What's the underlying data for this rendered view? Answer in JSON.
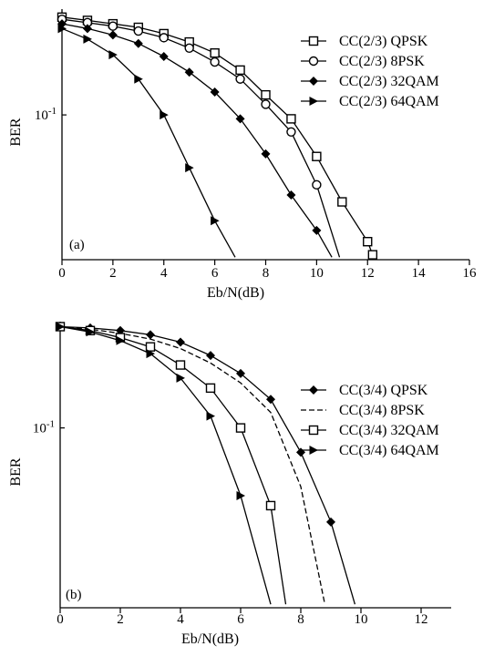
{
  "chart_data": [
    {
      "type": "line",
      "panel_label": "(a)",
      "xlabel": "Eb/N(dB)",
      "ylabel": "BER",
      "xlim": [
        0,
        16
      ],
      "x_ticks": [
        "0",
        "2",
        "4",
        "6",
        "8",
        "10",
        "12",
        "14",
        "16"
      ],
      "y_scale": "log",
      "ylim": [
        0.015,
        0.4
      ],
      "y_ticks": [
        {
          "value": 0.1,
          "base": "10",
          "exp": "-1"
        }
      ],
      "grid": false,
      "legend_position": "top-right",
      "series": [
        {
          "name": "CC(2/3) QPSK",
          "marker": "square",
          "x": [
            0,
            1,
            2,
            3,
            4,
            5,
            6,
            7,
            8,
            9,
            10,
            11,
            12,
            12.2
          ],
          "y": [
            0.36,
            0.345,
            0.33,
            0.315,
            0.29,
            0.26,
            0.225,
            0.18,
            0.13,
            0.095,
            0.058,
            0.032,
            0.019,
            0.016
          ]
        },
        {
          "name": "CC(2/3) 8PSK",
          "marker": "circle",
          "x": [
            0,
            1,
            2,
            3,
            4,
            5,
            6,
            7,
            8,
            9,
            10,
            10.9
          ],
          "y": [
            0.35,
            0.335,
            0.32,
            0.3,
            0.275,
            0.24,
            0.2,
            0.16,
            0.115,
            0.08,
            0.04,
            0.0155
          ]
        },
        {
          "name": "CC(2/3) 32QAM",
          "marker": "diamond",
          "x": [
            0,
            1,
            2,
            3,
            4,
            5,
            6,
            7,
            8,
            9,
            10,
            10.6
          ],
          "y": [
            0.33,
            0.31,
            0.285,
            0.255,
            0.215,
            0.175,
            0.135,
            0.095,
            0.06,
            0.035,
            0.022,
            0.0155
          ]
        },
        {
          "name": "CC(2/3) 64QAM",
          "marker": "triangle-right",
          "x": [
            0,
            1,
            2,
            3,
            4,
            5,
            6,
            6.8
          ],
          "y": [
            0.31,
            0.27,
            0.22,
            0.16,
            0.1,
            0.05,
            0.025,
            0.0155
          ]
        }
      ]
    },
    {
      "type": "line",
      "panel_label": "(b)",
      "xlabel": "Eb/N(dB)",
      "ylabel": "BER",
      "xlim": [
        0,
        13
      ],
      "x_ticks": [
        "0",
        "2",
        "4",
        "6",
        "8",
        "10",
        "12"
      ],
      "y_scale": "log",
      "ylim": [
        0.012,
        0.35
      ],
      "y_ticks": [
        {
          "value": 0.1,
          "base": "10",
          "exp": "-1"
        }
      ],
      "grid": false,
      "legend_position": "right",
      "series": [
        {
          "name": "CC(3/4) QPSK",
          "marker": "diamond",
          "x": [
            0,
            1,
            2,
            3,
            4,
            5,
            6,
            7,
            8,
            9,
            9.8
          ],
          "y": [
            0.33,
            0.325,
            0.315,
            0.3,
            0.275,
            0.235,
            0.19,
            0.14,
            0.075,
            0.033,
            0.0125
          ]
        },
        {
          "name": "CC(3/4) 8PSK",
          "marker": "none",
          "dashed": true,
          "x": [
            0,
            1,
            2,
            3,
            4,
            5,
            6,
            7,
            8,
            8.8
          ],
          "y": [
            0.33,
            0.32,
            0.305,
            0.285,
            0.255,
            0.215,
            0.17,
            0.12,
            0.05,
            0.0125
          ]
        },
        {
          "name": "CC(3/4) 32QAM",
          "marker": "square",
          "x": [
            0,
            1,
            2,
            3,
            4,
            5,
            6,
            7,
            7.5
          ],
          "y": [
            0.33,
            0.315,
            0.29,
            0.26,
            0.21,
            0.16,
            0.1,
            0.04,
            0.0125
          ]
        },
        {
          "name": "CC(3/4) 64QAM",
          "marker": "triangle-right",
          "x": [
            0,
            1,
            2,
            3,
            4,
            5,
            6,
            7
          ],
          "y": [
            0.33,
            0.31,
            0.28,
            0.24,
            0.18,
            0.115,
            0.045,
            0.0125
          ]
        }
      ]
    }
  ]
}
